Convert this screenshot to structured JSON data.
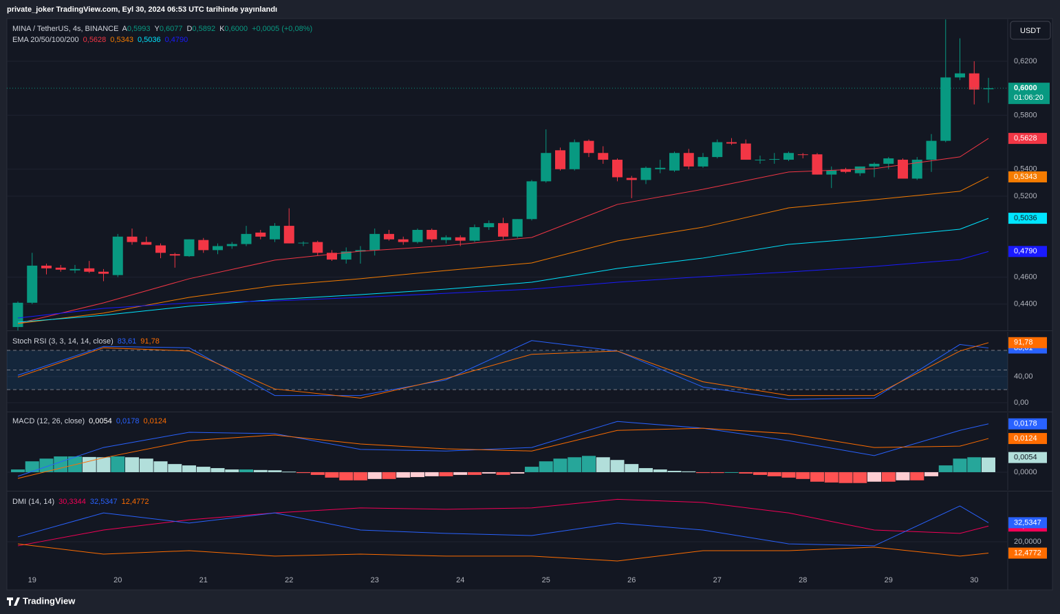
{
  "header": {
    "text": "private_joker TradingView.com, Eyl 30, 2024 06:53 UTC tarihinde yayınlandı",
    "currency": "USDT"
  },
  "footer": {
    "brand": "TradingView"
  },
  "chart_data": [
    {
      "type": "candlestick",
      "title": "MINA / TetherUS, 4s, BINANCE",
      "ohlc_legend": [
        {
          "letter": "A",
          "label": "0,5993"
        },
        {
          "letter": "Y",
          "label": "0,6077"
        },
        {
          "letter": "D",
          "label": "0,5892"
        },
        {
          "letter": "K",
          "label": "0,6000"
        }
      ],
      "change_label": "+0,0005 (+0,08%)",
      "ema_title": "EMA 20/50/100/200",
      "price_label": "0,6000",
      "countdown": "01:06:20",
      "up_color": "#089981",
      "down_color": "#f23645",
      "categories": [
        null,
        "19",
        null,
        null,
        null,
        null,
        null,
        "20",
        null,
        null,
        null,
        null,
        null,
        "21",
        null,
        null,
        null,
        null,
        null,
        "22",
        null,
        null,
        null,
        null,
        null,
        "23",
        null,
        null,
        null,
        null,
        null,
        "24",
        null,
        null,
        null,
        null,
        null,
        "25",
        null,
        null,
        null,
        null,
        null,
        "26",
        null,
        null,
        null,
        null,
        null,
        "27",
        null,
        null,
        null,
        null,
        null,
        "28",
        null,
        null,
        null,
        null,
        null,
        "29",
        null,
        null,
        null,
        null,
        null,
        "30",
        null
      ],
      "open": [
        0.423,
        0.441,
        0.4685,
        0.467,
        0.465,
        0.4665,
        0.464,
        0.4615,
        0.49,
        0.486,
        0.4835,
        0.477,
        0.4755,
        0.4875,
        0.48,
        0.483,
        0.4845,
        0.493,
        0.488,
        0.498,
        0.485,
        0.486,
        0.478,
        0.473,
        0.479,
        0.48,
        0.492,
        0.488,
        0.486,
        0.495,
        0.4875,
        0.4895,
        0.487,
        0.497,
        0.5,
        0.49,
        0.503,
        0.531,
        0.554,
        0.54,
        0.561,
        0.552,
        0.547,
        0.5335,
        0.532,
        0.54,
        0.539,
        0.552,
        0.542,
        0.549,
        0.56,
        0.559,
        0.547,
        0.547,
        0.547,
        0.551,
        0.551,
        0.536,
        0.54,
        0.537,
        0.542,
        0.544,
        0.547,
        0.533,
        0.547,
        0.561,
        0.608,
        0.611,
        0.5993
      ],
      "high": [
        0.442,
        0.478,
        0.47,
        0.469,
        0.469,
        0.472,
        0.466,
        0.492,
        0.496,
        0.49,
        0.485,
        0.478,
        0.488,
        0.489,
        0.485,
        0.486,
        0.498,
        0.495,
        0.5,
        0.511,
        0.4865,
        0.487,
        0.48,
        0.482,
        0.483,
        0.496,
        0.495,
        0.49,
        0.496,
        0.496,
        0.491,
        0.491,
        0.499,
        0.502,
        0.504,
        0.503,
        0.532,
        0.5695,
        0.556,
        0.562,
        0.562,
        0.557,
        0.548,
        0.535,
        0.542,
        0.547,
        0.553,
        0.555,
        0.552,
        0.562,
        0.563,
        0.562,
        0.55,
        0.552,
        0.553,
        0.552,
        0.552,
        0.542,
        0.541,
        0.542,
        0.545,
        0.549,
        0.548,
        0.549,
        0.566,
        0.651,
        0.637,
        0.62,
        0.6077
      ],
      "low": [
        0.42,
        0.44,
        0.462,
        0.464,
        0.463,
        0.463,
        0.457,
        0.46,
        0.484,
        0.484,
        0.474,
        0.467,
        0.475,
        0.478,
        0.477,
        0.481,
        0.483,
        0.488,
        0.486,
        0.485,
        0.483,
        0.476,
        0.472,
        0.47,
        0.47,
        0.476,
        0.487,
        0.484,
        0.485,
        0.486,
        0.485,
        0.483,
        0.486,
        0.495,
        0.488,
        0.489,
        0.502,
        0.53,
        0.539,
        0.539,
        0.549,
        0.544,
        0.531,
        0.5185,
        0.529,
        0.537,
        0.538,
        0.54,
        0.541,
        0.548,
        0.558,
        0.547,
        0.544,
        0.544,
        0.546,
        0.548,
        0.536,
        0.526,
        0.537,
        0.535,
        0.534,
        0.54,
        0.533,
        0.532,
        0.538,
        0.56,
        0.606,
        0.588,
        0.5892
      ],
      "close": [
        0.441,
        0.4685,
        0.4665,
        0.4655,
        0.466,
        0.464,
        0.4625,
        0.49,
        0.486,
        0.484,
        0.478,
        0.476,
        0.488,
        0.48,
        0.483,
        0.4845,
        0.492,
        0.49,
        0.498,
        0.485,
        0.4855,
        0.478,
        0.473,
        0.479,
        0.48,
        0.492,
        0.488,
        0.486,
        0.495,
        0.488,
        0.4895,
        0.487,
        0.497,
        0.5,
        0.49,
        0.503,
        0.531,
        0.552,
        0.54,
        0.56,
        0.552,
        0.547,
        0.534,
        0.532,
        0.541,
        0.541,
        0.552,
        0.542,
        0.549,
        0.56,
        0.559,
        0.547,
        0.547,
        0.5475,
        0.552,
        0.5505,
        0.536,
        0.539,
        0.538,
        0.542,
        0.544,
        0.548,
        0.533,
        0.547,
        0.561,
        0.608,
        0.611,
        0.599,
        0.6
      ],
      "series": [
        {
          "color": "#f23645",
          "label_text": "#ffffff",
          "last_label": "0,5628",
          "x": [
            0,
            6,
            12,
            18,
            24,
            30,
            36,
            42,
            48,
            54,
            60,
            66,
            68
          ],
          "values": [
            0.4256,
            0.4409,
            0.4588,
            0.4726,
            0.4792,
            0.4833,
            0.4894,
            0.5139,
            0.5251,
            0.5379,
            0.5404,
            0.5491,
            0.5628
          ]
        },
        {
          "color": "#f57c00",
          "label_text": "#ffffff",
          "last_label": "0,5343",
          "x": [
            0,
            6,
            12,
            18,
            24,
            30,
            36,
            42,
            48,
            54,
            60,
            66,
            68
          ],
          "values": [
            0.4256,
            0.4333,
            0.445,
            0.4537,
            0.4588,
            0.4649,
            0.4705,
            0.4868,
            0.497,
            0.5113,
            0.5174,
            0.5236,
            0.5343
          ]
        },
        {
          "color": "#00e5ff",
          "label_text": "#131722",
          "last_label": "0,5036",
          "x": [
            0,
            6,
            12,
            18,
            24,
            30,
            36,
            42,
            48,
            54,
            60,
            66,
            68
          ],
          "values": [
            0.4266,
            0.4317,
            0.4384,
            0.4434,
            0.447,
            0.4511,
            0.4562,
            0.4664,
            0.4741,
            0.4843,
            0.4894,
            0.4955,
            0.5036
          ]
        },
        {
          "color": "#1a1aff",
          "label_text": "#ffffff",
          "last_label": "0,4790",
          "x": [
            0,
            6,
            12,
            18,
            24,
            30,
            36,
            42,
            48,
            54,
            60,
            66,
            68
          ],
          "values": [
            0.4297,
            0.4368,
            0.4409,
            0.4424,
            0.445,
            0.448,
            0.4511,
            0.4562,
            0.4603,
            0.4638,
            0.4679,
            0.473,
            0.479
          ]
        }
      ],
      "ylim": [
        0.4205,
        0.6511
      ],
      "yticks": [
        {
          "value": 0.62,
          "label": "0,6200"
        },
        {
          "value": 0.58,
          "label": "0,5800"
        },
        {
          "value": 0.54,
          "label": "0,5400"
        },
        {
          "value": 0.52,
          "label": "0,5200"
        },
        {
          "value": 0.46,
          "label": "0,4600"
        },
        {
          "value": 0.44,
          "label": "0,4400"
        }
      ],
      "grid": true
    },
    {
      "type": "line",
      "title": "Stoch RSI (3, 3, 14, 14, close)",
      "bands": [
        20,
        50,
        80
      ],
      "series": [
        {
          "color": "#2962ff",
          "label_text": "#ffffff",
          "last_label": "83,61",
          "x": [
            0,
            6,
            12,
            18,
            24,
            30,
            36,
            42,
            48,
            54,
            60,
            66,
            68
          ],
          "values": [
            42,
            86,
            84,
            11,
            11,
            35,
            95,
            79,
            24,
            5,
            7,
            89,
            83.61
          ]
        },
        {
          "color": "#ff6d00",
          "label_text": "#ffffff",
          "last_label": "91,78",
          "x": [
            0,
            6,
            12,
            18,
            24,
            30,
            36,
            42,
            48,
            54,
            60,
            66,
            68
          ],
          "values": [
            39,
            84,
            79,
            21,
            7,
            37,
            74,
            79,
            32,
            11,
            11,
            79,
            91.78
          ]
        }
      ],
      "ylim": [
        -12.6,
        108.4
      ],
      "yticks": [
        {
          "value": 40,
          "label": "40,00"
        },
        {
          "value": 0,
          "label": "0,00"
        }
      ],
      "grid": true
    },
    {
      "type": "bar",
      "title": "MACD (12, 26, close)",
      "hist_last_label": "0,0054",
      "hist_colors": [
        "#26a69a",
        "#b2dfdb",
        "#ff5252",
        "#ffcdd2"
      ],
      "values": [
        0.001,
        0.004,
        0.005,
        0.0058,
        0.0058,
        0.0056,
        0.0055,
        0.0058,
        0.0055,
        0.005,
        0.004,
        0.003,
        0.0025,
        0.002,
        0.0015,
        0.001,
        0.001,
        0.0008,
        0.0007,
        0.0002,
        -0.0003,
        -0.001,
        -0.002,
        -0.003,
        -0.003,
        -0.0025,
        -0.0025,
        -0.002,
        -0.0018,
        -0.0015,
        -0.0015,
        -0.001,
        -0.001,
        -0.0005,
        -0.001,
        -0.0005,
        0.002,
        0.004,
        0.005,
        0.0055,
        0.006,
        0.0055,
        0.0045,
        0.003,
        0.0015,
        0.001,
        0.0005,
        0.0003,
        -0.0003,
        -0.0003,
        0.0,
        -0.0005,
        -0.001,
        -0.0015,
        -0.002,
        -0.0025,
        -0.0035,
        -0.0038,
        -0.004,
        -0.004,
        -0.0035,
        -0.0035,
        -0.003,
        -0.003,
        -0.0015,
        0.0025,
        0.005,
        0.0055,
        0.0054
      ],
      "series": [
        {
          "color": "#2962ff",
          "label_text": "#ffffff",
          "last_label": "0,0178",
          "x": [
            0,
            6,
            12,
            18,
            24,
            30,
            36,
            42,
            48,
            54,
            60,
            66,
            68
          ],
          "values": [
            -0.0015,
            0.0091,
            0.0147,
            0.0142,
            0.0084,
            0.0078,
            0.0091,
            0.0187,
            0.0162,
            0.0116,
            0.0061,
            0.0154,
            0.0178
          ]
        },
        {
          "color": "#ff6d00",
          "label_text": "#ffffff",
          "last_label": "0,0124",
          "x": [
            0,
            6,
            12,
            18,
            24,
            30,
            36,
            42,
            48,
            54,
            60,
            66,
            68
          ],
          "values": [
            -0.0023,
            0.0053,
            0.0116,
            0.0137,
            0.0104,
            0.0086,
            0.0078,
            0.0154,
            0.0162,
            0.0142,
            0.0091,
            0.0096,
            0.0124
          ]
        }
      ],
      "ylim": [
        -0.0066,
        0.0218
      ],
      "yticks": [
        {
          "value": 0,
          "label": "0,0000"
        }
      ],
      "grid": true
    },
    {
      "type": "line",
      "title": "DMI (14, 14)",
      "series": [
        {
          "color": "#f50057",
          "label_text": "#ffffff",
          "last_label": "30,3344",
          "x": [
            0,
            6,
            12,
            18,
            24,
            30,
            36,
            42,
            48,
            54,
            60,
            66,
            68
          ],
          "values": [
            17.3,
            27.7,
            34.5,
            39,
            42.3,
            41.4,
            42.3,
            48,
            45.9,
            39,
            27.7,
            25.5,
            30.3344
          ]
        },
        {
          "color": "#2962ff",
          "label_text": "#ffffff",
          "last_label": "32,5347",
          "x": [
            0,
            6,
            12,
            18,
            24,
            30,
            36,
            42,
            48,
            54,
            60,
            66,
            68
          ],
          "values": [
            23.2,
            39,
            32.3,
            39,
            27.7,
            25.5,
            24.1,
            32.3,
            27.7,
            18.6,
            17.3,
            43.6,
            32.5347
          ]
        },
        {
          "color": "#ff6d00",
          "label_text": "#ffffff",
          "last_label": "12,4772",
          "x": [
            0,
            6,
            12,
            18,
            24,
            30,
            36,
            42,
            48,
            54,
            60,
            66,
            68
          ],
          "values": [
            18.6,
            11.8,
            14.1,
            10.5,
            11.8,
            10.5,
            10.5,
            7.3,
            14.1,
            14.1,
            16.4,
            10.5,
            12.4772
          ]
        }
      ],
      "ylim": [
        -11.8,
        52.7
      ],
      "yticks": [
        {
          "value": 20,
          "label": "20,0000"
        }
      ],
      "grid": true
    }
  ]
}
